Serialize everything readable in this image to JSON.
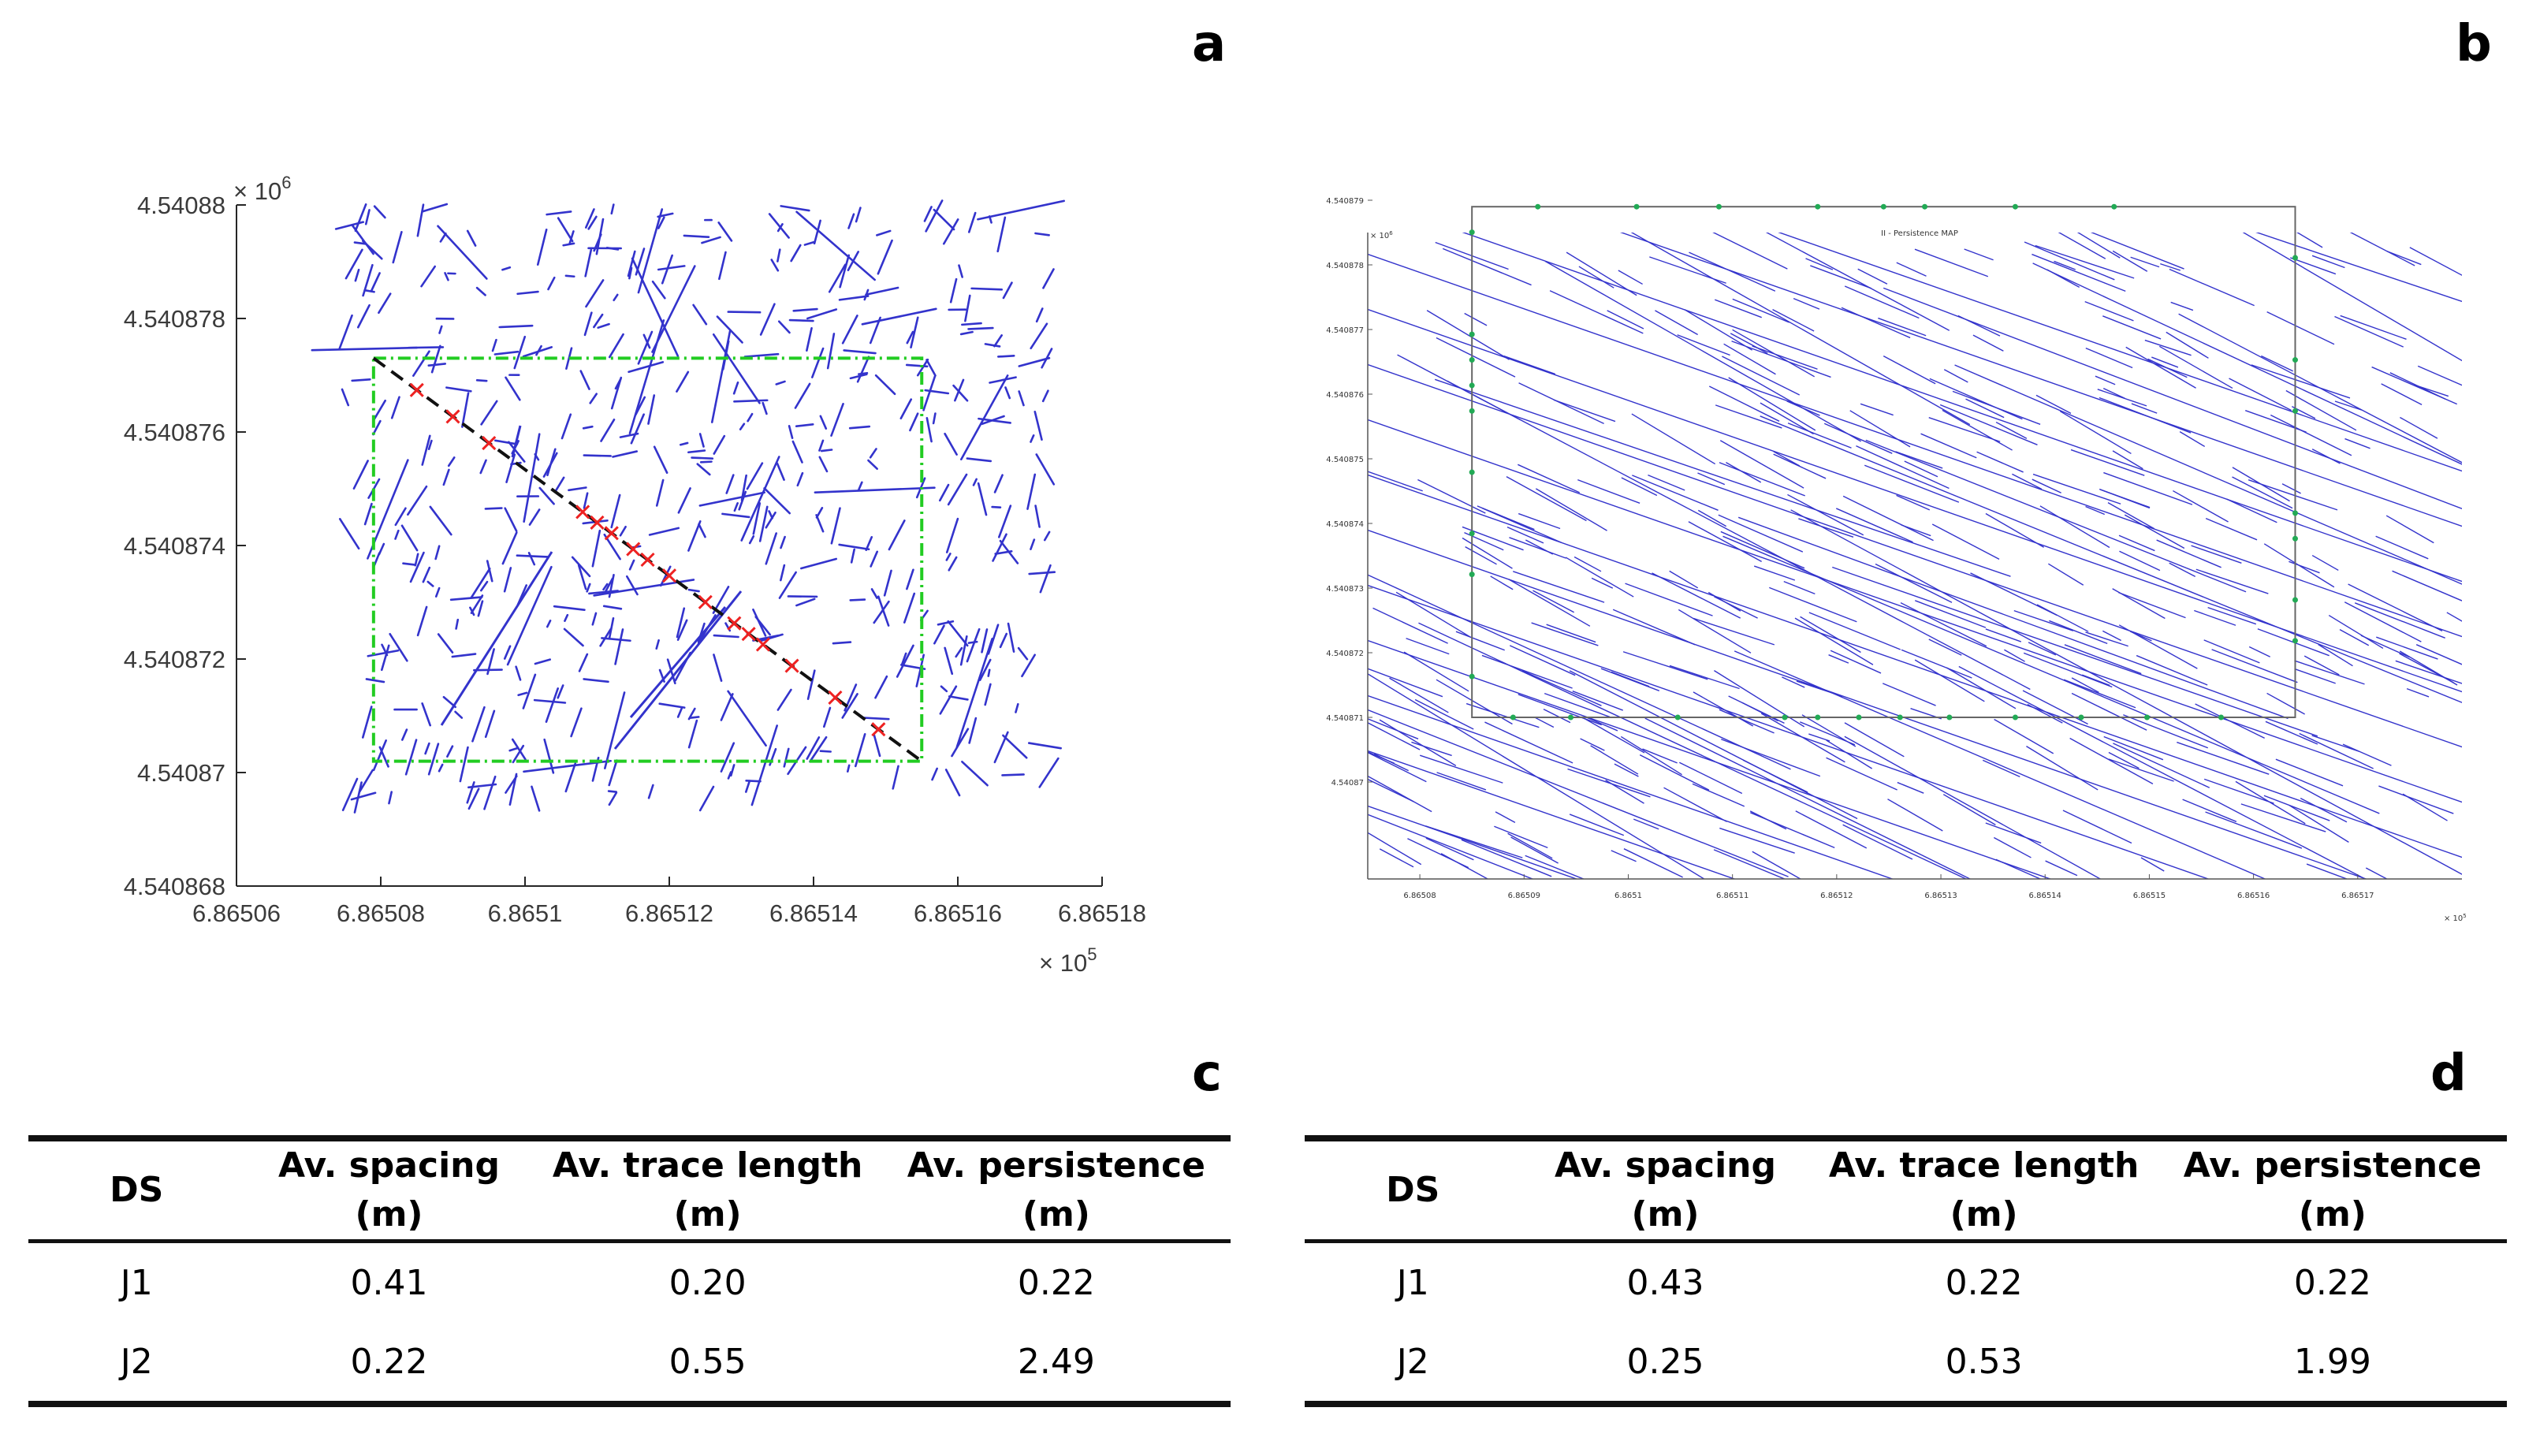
{
  "panels": {
    "a": "a",
    "b": "b",
    "c": "c",
    "d": "d"
  },
  "chart_data": [
    {
      "type": "scatter",
      "panel": "a",
      "title": "",
      "xlabel": "",
      "ylabel": "",
      "x_multiplier": "× 10",
      "x_exponent": "5",
      "y_multiplier": "× 10",
      "y_exponent": "6",
      "xlim": [
        6.86506,
        6.86518
      ],
      "ylim": [
        4.540868,
        4.54088
      ],
      "x_ticks": [
        6.86506,
        6.86508,
        6.8651,
        6.86512,
        6.86514,
        6.86516,
        6.86518
      ],
      "x_tick_labels": [
        "6.86506",
        "6.86508",
        "6.8651",
        "6.86512",
        "6.86514",
        "6.86516",
        "6.86518"
      ],
      "y_ticks": [
        4.540868,
        4.54087,
        4.540872,
        4.540874,
        4.540876,
        4.540878,
        4.54088
      ],
      "y_tick_labels": [
        "4.540868",
        "4.54087",
        "4.540872",
        "4.540874",
        "4.540876",
        "4.540878",
        "4.54088"
      ],
      "sampling_window": {
        "x": [
          6.865079,
          6.865155
        ],
        "y": [
          4.5408702,
          4.5408773
        ],
        "color": "#22cc22"
      },
      "scanline": {
        "from": [
          6.865079,
          4.5408773
        ],
        "to": [
          6.865155,
          4.5408702
        ],
        "color": "#111111"
      },
      "intersections_x": [
        6.865085,
        6.86509,
        6.865095,
        6.865108,
        6.86511,
        6.865112,
        6.865115,
        6.865117,
        6.86512,
        6.865125,
        6.865129,
        6.865131,
        6.865133,
        6.865137,
        6.865143,
        6.865149
      ],
      "trace_color": "#3333cc",
      "marker_color": "#ee2222"
    },
    {
      "type": "scatter",
      "panel": "b",
      "title": "II - Persistence MAP",
      "x_multiplier": "× 10",
      "x_exponent": "5",
      "y_multiplier": "× 10",
      "y_exponent": "6",
      "xlim": [
        6.865075,
        6.86518
      ],
      "ylim": [
        4.5408685,
        4.5408785
      ],
      "x_tick_labels": [
        "6.86508",
        "6.86509",
        "6.8651",
        "6.86511",
        "6.86512",
        "6.86513",
        "6.86514",
        "6.86515",
        "6.86516",
        "6.86517"
      ],
      "x_ticks": [
        6.86508,
        6.86509,
        6.8651,
        6.86511,
        6.86512,
        6.86513,
        6.86514,
        6.86515,
        6.86516,
        6.86517
      ],
      "y_tick_labels": [
        "4.54087",
        "4.540871",
        "4.540872",
        "4.540873",
        "4.540874",
        "4.540875",
        "4.540876",
        "4.540877",
        "4.540878",
        "4.540879"
      ],
      "y_ticks": [
        4.54087,
        4.540871,
        4.540872,
        4.540873,
        4.540874,
        4.540875,
        4.540876,
        4.540877,
        4.540878,
        4.540879
      ],
      "sampling_window": {
        "x": [
          6.865085,
          6.865164
        ],
        "y": [
          4.540871,
          4.5408789
        ],
        "color": "#666666"
      },
      "trace_color": "#3333cc",
      "marker_color": "#22aa55"
    }
  ],
  "tables": [
    {
      "panel": "c",
      "headers": [
        {
          "line1": "DS",
          "line2": ""
        },
        {
          "line1": "Av. spacing",
          "line2": "(m)"
        },
        {
          "line1": "Av. trace length",
          "line2": "(m)"
        },
        {
          "line1": "Av. persistence",
          "line2": "(m)"
        }
      ],
      "rows": [
        [
          "J1",
          "0.41",
          "0.20",
          "0.22"
        ],
        [
          "J2",
          "0.22",
          "0.55",
          "2.49"
        ]
      ]
    },
    {
      "panel": "d",
      "headers": [
        {
          "line1": "DS",
          "line2": ""
        },
        {
          "line1": "Av. spacing",
          "line2": "(m)"
        },
        {
          "line1": "Av. trace length",
          "line2": "(m)"
        },
        {
          "line1": "Av. persistence",
          "line2": "(m)"
        }
      ],
      "rows": [
        [
          "J1",
          "0.43",
          "0.22",
          "0.22"
        ],
        [
          "J2",
          "0.25",
          "0.53",
          "1.99"
        ]
      ]
    }
  ]
}
